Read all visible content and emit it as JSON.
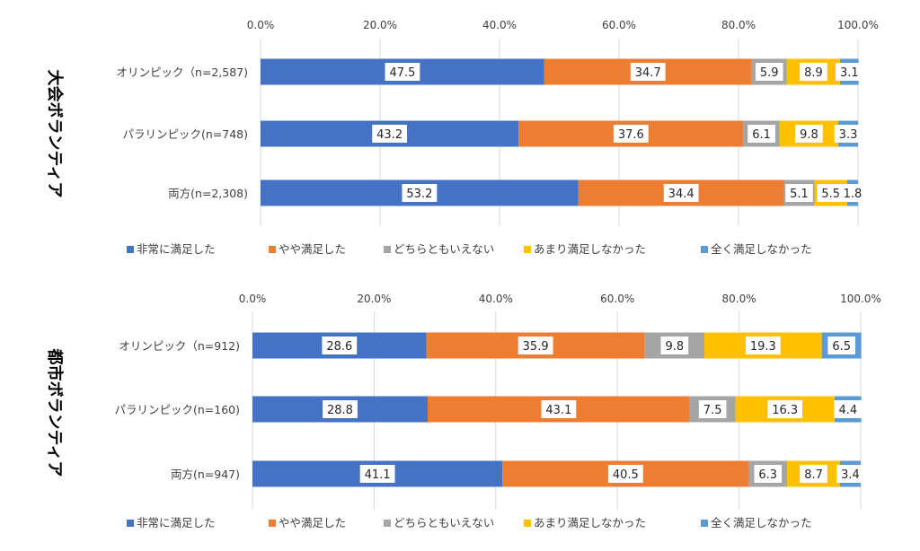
{
  "colors": [
    "#4472C4",
    "#ED7D31",
    "#A5A5A5",
    "#FFC000",
    "#5B9BD5"
  ],
  "chart_data": [
    {
      "type": "bar",
      "stacked": true,
      "orientation": "horizontal",
      "side_label": "大会ボランティア",
      "xlim": [
        0,
        100
      ],
      "ticks": [
        "0.0%",
        "20.0%",
        "40.0%",
        "60.0%",
        "80.0%",
        "100.0%"
      ],
      "categories": [
        "オリンピック（n=2,587)",
        "パラリンピック(n=748)",
        "両方(n=2,308)"
      ],
      "series": [
        {
          "name": "非常に満足した",
          "values": [
            47.5,
            43.2,
            53.2
          ]
        },
        {
          "name": "やや満足した",
          "values": [
            34.7,
            37.6,
            34.4
          ]
        },
        {
          "name": "どちらともいえない",
          "values": [
            5.9,
            6.1,
            5.1
          ]
        },
        {
          "name": "あまり満足しなかった",
          "values": [
            8.9,
            9.8,
            5.5
          ]
        },
        {
          "name": "全く満足しなかった",
          "values": [
            3.1,
            3.3,
            1.8
          ]
        }
      ],
      "legend_position": "bottom",
      "grid": true
    },
    {
      "type": "bar",
      "stacked": true,
      "orientation": "horizontal",
      "side_label": "都市ボランティア",
      "xlim": [
        0,
        100
      ],
      "ticks": [
        "0.0%",
        "20.0%",
        "40.0%",
        "60.0%",
        "80.0%",
        "100.0%"
      ],
      "categories": [
        "オリンピック（n=912)",
        "パラリンピック(n=160)",
        "両方(n=947)"
      ],
      "series": [
        {
          "name": "非常に満足した",
          "values": [
            28.6,
            28.8,
            41.1
          ]
        },
        {
          "name": "やや満足した",
          "values": [
            35.9,
            43.1,
            40.5
          ]
        },
        {
          "name": "どちらともいえない",
          "values": [
            9.8,
            7.5,
            6.3
          ]
        },
        {
          "name": "あまり満足しなかった",
          "values": [
            19.3,
            16.3,
            8.7
          ]
        },
        {
          "name": "全く満足しなかった",
          "values": [
            6.5,
            4.4,
            3.4
          ]
        }
      ],
      "legend_position": "bottom",
      "grid": true
    }
  ]
}
